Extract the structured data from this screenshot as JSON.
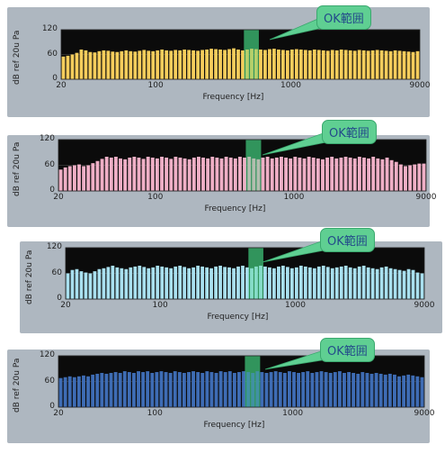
{
  "callout_text": "OK範囲",
  "chart_data": [
    {
      "type": "bar",
      "title": "",
      "xlabel": "Frequency [Hz]",
      "ylabel": "dB ref 20u Pa",
      "xscale": "log",
      "xlim": [
        20,
        9000
      ],
      "ylim": [
        0,
        120
      ],
      "xticks": [
        "20",
        "100",
        "1000",
        "9000"
      ],
      "yticks": [
        "0",
        "60",
        "120"
      ],
      "bar_color": "#f5cd5c",
      "n_bars": 80,
      "highlight_range_hz": [
        450,
        580
      ],
      "values": [
        55,
        57,
        60,
        64,
        72,
        70,
        66,
        65,
        68,
        70,
        69,
        67,
        66,
        68,
        70,
        68,
        67,
        69,
        71,
        69,
        68,
        70,
        72,
        70,
        69,
        71,
        70,
        72,
        71,
        70,
        69,
        71,
        72,
        74,
        73,
        72,
        71,
        73,
        75,
        72,
        70,
        72,
        74,
        73,
        72,
        71,
        73,
        74,
        72,
        71,
        70,
        72,
        73,
        72,
        71,
        70,
        72,
        71,
        70,
        69,
        71,
        70,
        72,
        71,
        70,
        69,
        71,
        70,
        69,
        70,
        71,
        70,
        69,
        68,
        70,
        69,
        68,
        67,
        66,
        68
      ]
    },
    {
      "type": "bar",
      "title": "",
      "xlabel": "Frequency [Hz]",
      "ylabel": "dB ref 20u Pa",
      "xscale": "log",
      "xlim": [
        20,
        9000
      ],
      "ylim": [
        0,
        120
      ],
      "xticks": [
        "20",
        "100",
        "1000",
        "9000"
      ],
      "yticks": [
        "0",
        "60",
        "120"
      ],
      "bar_color": "#efafc6",
      "n_bars": 80,
      "highlight_range_hz": [
        450,
        580
      ],
      "values": [
        50,
        55,
        58,
        60,
        62,
        58,
        60,
        65,
        70,
        75,
        80,
        78,
        80,
        76,
        74,
        78,
        80,
        78,
        75,
        80,
        78,
        76,
        80,
        78,
        75,
        80,
        78,
        76,
        74,
        78,
        80,
        78,
        76,
        80,
        78,
        76,
        80,
        78,
        76,
        80,
        78,
        80,
        76,
        74,
        78,
        80,
        76,
        78,
        80,
        78,
        76,
        80,
        78,
        76,
        80,
        78,
        76,
        74,
        78,
        80,
        76,
        78,
        80,
        78,
        76,
        80,
        78,
        76,
        80,
        76,
        74,
        78,
        72,
        68,
        62,
        58,
        60,
        62,
        64,
        64
      ]
    },
    {
      "type": "bar",
      "title": "",
      "xlabel": "Frequency [Hz]",
      "ylabel": "dB ref 20u Pa",
      "xscale": "log",
      "xlim": [
        20,
        9000
      ],
      "ylim": [
        0,
        120
      ],
      "xticks": [
        "20",
        "100",
        "1000",
        "9000"
      ],
      "yticks": [
        "0",
        "60",
        "120"
      ],
      "bar_color": "#a9e0ef",
      "n_bars": 80,
      "highlight_range_hz": [
        450,
        580
      ],
      "values": [
        60,
        68,
        70,
        65,
        62,
        60,
        65,
        70,
        72,
        75,
        78,
        74,
        72,
        70,
        74,
        76,
        78,
        75,
        72,
        74,
        78,
        76,
        74,
        72,
        76,
        78,
        75,
        72,
        74,
        78,
        76,
        74,
        72,
        76,
        78,
        75,
        74,
        72,
        76,
        78,
        74,
        72,
        76,
        78,
        76,
        74,
        72,
        76,
        78,
        75,
        72,
        74,
        78,
        76,
        74,
        72,
        76,
        78,
        75,
        72,
        74,
        76,
        78,
        74,
        72,
        76,
        78,
        74,
        72,
        70,
        74,
        76,
        72,
        70,
        68,
        66,
        70,
        68,
        62,
        60
      ]
    },
    {
      "type": "bar",
      "title": "",
      "xlabel": "Frequency [Hz]",
      "ylabel": "dB ref 20u Pa",
      "xscale": "log",
      "xlim": [
        20,
        9000
      ],
      "ylim": [
        0,
        120
      ],
      "xticks": [
        "20",
        "100",
        "1000",
        "9000"
      ],
      "yticks": [
        "0",
        "60",
        "120"
      ],
      "bar_color": "#3e6cb4",
      "n_bars": 80,
      "highlight_range_hz": [
        450,
        580
      ],
      "values": [
        68,
        70,
        72,
        70,
        72,
        74,
        72,
        76,
        78,
        80,
        78,
        80,
        82,
        80,
        84,
        82,
        80,
        84,
        82,
        84,
        80,
        82,
        84,
        82,
        80,
        84,
        82,
        80,
        82,
        84,
        82,
        80,
        84,
        82,
        80,
        84,
        82,
        84,
        80,
        82,
        84,
        82,
        80,
        84,
        82,
        80,
        82,
        84,
        82,
        80,
        84,
        82,
        80,
        82,
        84,
        80,
        82,
        84,
        82,
        80,
        82,
        84,
        80,
        82,
        80,
        78,
        82,
        80,
        78,
        80,
        78,
        76,
        78,
        76,
        72,
        74,
        76,
        74,
        72,
        70
      ]
    }
  ]
}
